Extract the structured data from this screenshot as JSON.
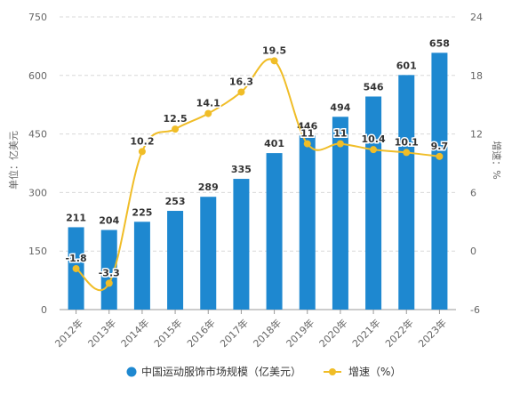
{
  "chart_data": {
    "type": "bar",
    "categories": [
      "2012年",
      "2013年",
      "2014年",
      "2015年",
      "2016年",
      "2017年",
      "2018年",
      "2019年",
      "2020年",
      "2021年",
      "2022年",
      "2023年"
    ],
    "series": [
      {
        "name": "中国运动服饰市场规模（亿美元）",
        "type": "bar",
        "axis": "left",
        "color": "#1e88d0",
        "values": [
          211,
          204,
          225,
          253,
          289,
          335,
          401,
          446,
          494,
          546,
          601,
          658
        ],
        "labels": [
          "211",
          "204",
          "225",
          "253",
          "289",
          "335",
          "401",
          "446",
          "494",
          "546",
          "601",
          "658"
        ]
      },
      {
        "name": "增速（%）",
        "type": "line",
        "axis": "right",
        "color": "#f0bd27",
        "values": [
          -1.8,
          -3.3,
          10.2,
          12.5,
          14.1,
          16.3,
          19.5,
          11,
          11,
          10.4,
          10.1,
          9.7
        ],
        "labels": [
          "-1.8",
          "-3.3",
          "10.2",
          "12.5",
          "14.1",
          "16.3",
          "19.5",
          "11",
          "11",
          "10.4",
          "10.1",
          "9.7"
        ]
      }
    ],
    "y_left": {
      "label": "单位：亿美元",
      "ylim": [
        0,
        750
      ],
      "ticks": [
        "0",
        "150",
        "300",
        "450",
        "600",
        "750"
      ]
    },
    "y_right": {
      "label": "增速：%",
      "ylim": [
        -6,
        24
      ],
      "ticks": [
        "-6",
        "0",
        "6",
        "12",
        "18",
        "24"
      ]
    },
    "grid": true,
    "legend": "bottom-center"
  }
}
